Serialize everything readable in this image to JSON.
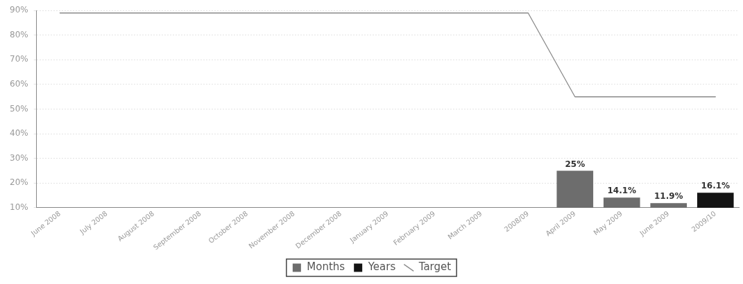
{
  "chart_data": {
    "type": "bar",
    "categories": [
      "June 2008",
      "July 2008",
      "August 2008",
      "September 2008",
      "October 2008",
      "November 2008",
      "December 2008",
      "January 2009",
      "February 2009",
      "March 2009",
      "2008/09",
      "April 2009",
      "May 2009",
      "June 2009",
      "2009/10"
    ],
    "series": [
      {
        "name": "Months",
        "color": "#6d6d6d",
        "values": [
          null,
          null,
          null,
          null,
          null,
          null,
          null,
          null,
          null,
          null,
          null,
          25,
          14.1,
          11.9,
          null
        ],
        "value_labels": [
          null,
          null,
          null,
          null,
          null,
          null,
          null,
          null,
          null,
          null,
          null,
          "25%",
          "14.1%",
          "11.9%",
          null
        ]
      },
      {
        "name": "Years",
        "color": "#141414",
        "values": [
          null,
          null,
          null,
          null,
          null,
          null,
          null,
          null,
          null,
          null,
          null,
          null,
          null,
          null,
          16.1
        ],
        "value_labels": [
          null,
          null,
          null,
          null,
          null,
          null,
          null,
          null,
          null,
          null,
          null,
          null,
          null,
          null,
          "16.1%"
        ]
      },
      {
        "name": "Target",
        "type": "line",
        "color": "#8a8a8a",
        "values": [
          89,
          89,
          89,
          89,
          89,
          89,
          89,
          89,
          89,
          89,
          89,
          55,
          55,
          55,
          55
        ]
      }
    ],
    "ylim": [
      10,
      90
    ],
    "yticks": [
      {
        "value": 10,
        "label": "10%"
      },
      {
        "value": 20,
        "label": "20%"
      },
      {
        "value": 30,
        "label": "30%"
      },
      {
        "value": 40,
        "label": "40%"
      },
      {
        "value": 50,
        "label": "50%"
      },
      {
        "value": 60,
        "label": "60%"
      },
      {
        "value": 70,
        "label": "70%"
      },
      {
        "value": 80,
        "label": "80%"
      },
      {
        "value": 90,
        "label": "90%"
      }
    ],
    "grid": "y",
    "legend": "bottom"
  }
}
